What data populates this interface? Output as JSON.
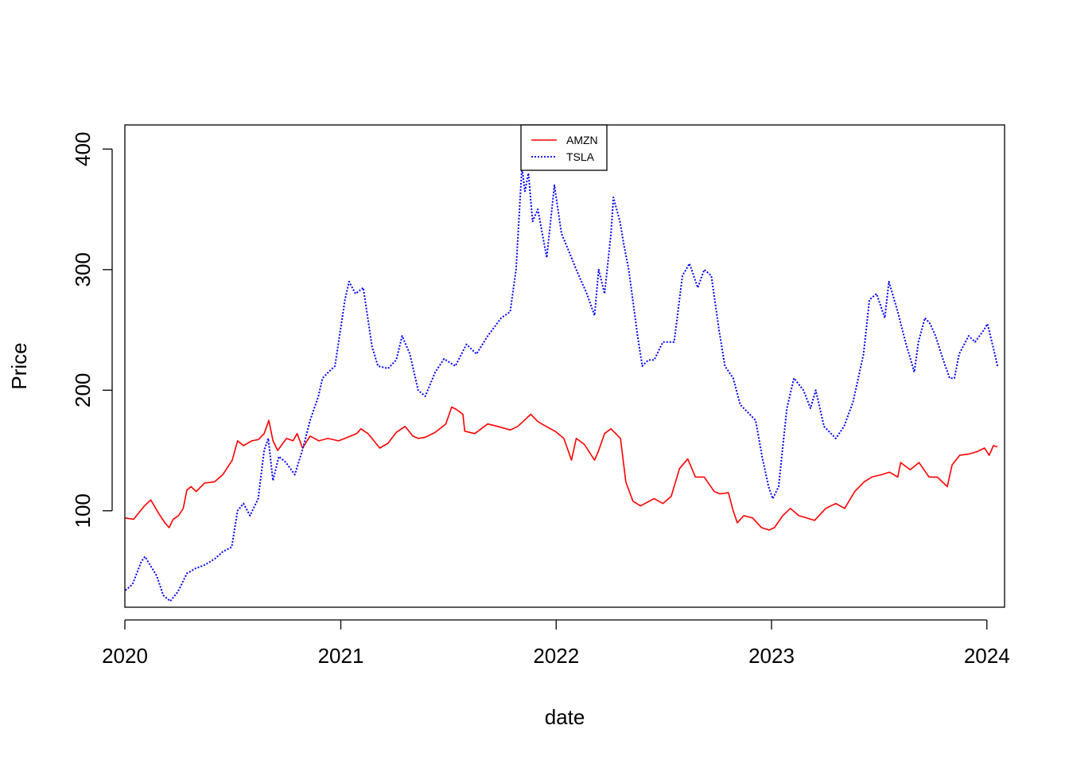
{
  "chart_data": {
    "type": "line",
    "title": "",
    "xlabel": "date",
    "ylabel": "Price",
    "xlim": [
      "2020-01-01",
      "2024-01-31"
    ],
    "ylim": [
      20,
      420
    ],
    "x_ticks": [
      "2020",
      "2021",
      "2022",
      "2023",
      "2024"
    ],
    "y_ticks": [
      100,
      200,
      300,
      400
    ],
    "grid": false,
    "legend": {
      "position": "top-center",
      "entries": [
        "AMZN",
        "TSLA"
      ]
    },
    "series": [
      {
        "name": "AMZN",
        "color": "#FF0000",
        "line_style": "solid",
        "x": [
          "2020-01-02",
          "2020-01-16",
          "2020-02-03",
          "2020-02-14",
          "2020-02-27",
          "2020-03-09",
          "2020-03-16",
          "2020-03-23",
          "2020-04-01",
          "2020-04-09",
          "2020-04-15",
          "2020-04-22",
          "2020-05-01",
          "2020-05-15",
          "2020-06-01",
          "2020-06-15",
          "2020-07-01",
          "2020-07-10",
          "2020-07-20",
          "2020-08-03",
          "2020-08-14",
          "2020-08-24",
          "2020-09-01",
          "2020-09-08",
          "2020-09-16",
          "2020-10-01",
          "2020-10-12",
          "2020-10-19",
          "2020-10-28",
          "2020-11-10",
          "2020-11-25",
          "2020-12-10",
          "2020-12-28",
          "2021-01-08",
          "2021-01-28",
          "2021-02-04",
          "2021-02-16",
          "2021-03-08",
          "2021-03-22",
          "2021-04-05",
          "2021-04-20",
          "2021-05-03",
          "2021-05-12",
          "2021-05-24",
          "2021-06-10",
          "2021-06-28",
          "2021-07-08",
          "2021-07-16",
          "2021-07-27",
          "2021-07-30",
          "2021-08-16",
          "2021-09-07",
          "2021-09-24",
          "2021-10-15",
          "2021-10-28",
          "2021-11-10",
          "2021-11-19",
          "2021-12-01",
          "2021-12-15",
          "2021-12-30",
          "2022-01-14",
          "2022-01-27",
          "2022-02-04",
          "2022-02-18",
          "2022-03-07",
          "2022-03-14",
          "2022-03-24",
          "2022-04-04",
          "2022-04-20",
          "2022-04-29",
          "2022-05-11",
          "2022-05-24",
          "2022-06-08",
          "2022-06-16",
          "2022-07-01",
          "2022-07-15",
          "2022-07-29",
          "2022-08-12",
          "2022-08-25",
          "2022-09-09",
          "2022-09-26",
          "2022-10-06",
          "2022-10-20",
          "2022-10-28",
          "2022-11-04",
          "2022-11-15",
          "2022-11-30",
          "2022-12-15",
          "2022-12-28",
          "2023-01-06",
          "2023-01-20",
          "2023-02-02",
          "2023-02-16",
          "2023-03-02",
          "2023-03-15",
          "2023-04-03",
          "2023-04-20",
          "2023-05-05",
          "2023-05-22",
          "2023-06-07",
          "2023-06-20",
          "2023-07-07",
          "2023-07-20",
          "2023-08-03",
          "2023-08-08",
          "2023-08-24",
          "2023-09-08",
          "2023-09-25",
          "2023-10-09",
          "2023-10-26",
          "2023-11-03",
          "2023-11-16",
          "2023-12-01",
          "2023-12-15",
          "2023-12-28",
          "2024-01-05",
          "2024-01-12",
          "2024-01-19"
        ],
        "values": [
          94,
          93,
          104,
          109,
          98,
          90,
          86,
          93,
          96,
          102,
          117,
          120,
          116,
          123,
          124,
          130,
          142,
          158,
          154,
          158,
          159,
          164,
          175,
          158,
          150,
          160,
          158,
          164,
          152,
          162,
          158,
          160,
          158,
          160,
          164,
          168,
          164,
          152,
          156,
          165,
          170,
          162,
          160,
          161,
          165,
          172,
          186,
          184,
          180,
          166,
          164,
          172,
          170,
          167,
          170,
          176,
          180,
          174,
          170,
          166,
          160,
          142,
          160,
          155,
          142,
          150,
          164,
          168,
          160,
          124,
          108,
          104,
          108,
          110,
          106,
          112,
          135,
          143,
          128,
          128,
          116,
          114,
          115,
          100,
          90,
          96,
          94,
          86,
          84,
          86,
          96,
          102,
          96,
          94,
          92,
          102,
          106,
          102,
          116,
          124,
          128,
          130,
          132,
          128,
          140,
          134,
          140,
          128,
          128,
          120,
          138,
          146,
          147,
          149,
          152,
          146,
          154,
          153
        ]
      },
      {
        "name": "TSLA",
        "color": "#0000FF",
        "line_style": "dotted",
        "x": [
          "2020-01-02",
          "2020-01-14",
          "2020-01-29",
          "2020-02-04",
          "2020-02-14",
          "2020-02-24",
          "2020-03-06",
          "2020-03-18",
          "2020-03-31",
          "2020-04-15",
          "2020-04-29",
          "2020-05-15",
          "2020-06-01",
          "2020-06-15",
          "2020-06-30",
          "2020-07-10",
          "2020-07-20",
          "2020-07-31",
          "2020-08-14",
          "2020-08-24",
          "2020-08-31",
          "2020-09-08",
          "2020-09-18",
          "2020-09-30",
          "2020-10-15",
          "2020-10-29",
          "2020-11-10",
          "2020-11-24",
          "2020-12-01",
          "2020-12-11",
          "2020-12-22",
          "2021-01-08",
          "2021-01-15",
          "2021-01-26",
          "2021-02-08",
          "2021-02-23",
          "2021-03-05",
          "2021-03-22",
          "2021-04-05",
          "2021-04-15",
          "2021-04-28",
          "2021-05-12",
          "2021-05-24",
          "2021-06-10",
          "2021-06-25",
          "2021-07-14",
          "2021-08-02",
          "2021-08-19",
          "2021-09-07",
          "2021-09-30",
          "2021-10-15",
          "2021-10-25",
          "2021-11-04",
          "2021-11-09",
          "2021-11-15",
          "2021-11-22",
          "2021-12-01",
          "2021-12-16",
          "2021-12-29",
          "2022-01-10",
          "2022-01-27",
          "2022-02-04",
          "2022-02-22",
          "2022-03-07",
          "2022-03-14",
          "2022-03-24",
          "2022-04-04",
          "2022-04-08",
          "2022-04-19",
          "2022-04-26",
          "2022-05-04",
          "2022-05-19",
          "2022-05-27",
          "2022-06-06",
          "2022-06-16",
          "2022-07-01",
          "2022-07-20",
          "2022-08-03",
          "2022-08-15",
          "2022-08-29",
          "2022-09-09",
          "2022-09-21",
          "2022-10-04",
          "2022-10-14",
          "2022-10-28",
          "2022-11-09",
          "2022-11-21",
          "2022-12-05",
          "2022-12-16",
          "2022-12-27",
          "2023-01-03",
          "2023-01-13",
          "2023-01-27",
          "2023-02-08",
          "2023-02-24",
          "2023-03-08",
          "2023-03-17",
          "2023-03-31",
          "2023-04-20",
          "2023-05-04",
          "2023-05-19",
          "2023-06-06",
          "2023-06-16",
          "2023-06-28",
          "2023-07-12",
          "2023-07-19",
          "2023-08-03",
          "2023-08-16",
          "2023-08-31",
          "2023-09-07",
          "2023-09-18",
          "2023-09-27",
          "2023-10-06",
          "2023-10-19",
          "2023-10-30",
          "2023-11-07",
          "2023-11-15",
          "2023-12-01",
          "2023-12-12",
          "2023-12-27",
          "2024-01-02",
          "2024-01-12",
          "2024-01-19"
        ],
        "values": [
          34,
          39,
          58,
          62,
          54,
          46,
          30,
          25,
          33,
          48,
          52,
          55,
          60,
          66,
          70,
          100,
          106,
          96,
          110,
          150,
          160,
          125,
          145,
          140,
          130,
          152,
          175,
          195,
          210,
          215,
          220,
          275,
          290,
          280,
          285,
          236,
          220,
          218,
          225,
          245,
          230,
          200,
          195,
          215,
          226,
          220,
          238,
          230,
          245,
          260,
          265,
          300,
          385,
          365,
          380,
          340,
          350,
          310,
          370,
          330,
          310,
          300,
          280,
          262,
          300,
          280,
          330,
          360,
          340,
          320,
          300,
          245,
          220,
          225,
          225,
          240,
          240,
          295,
          305,
          285,
          300,
          295,
          250,
          220,
          210,
          188,
          182,
          175,
          145,
          120,
          110,
          120,
          185,
          210,
          200,
          185,
          200,
          170,
          160,
          170,
          190,
          230,
          275,
          280,
          260,
          290,
          265,
          240,
          215,
          240,
          260,
          255,
          245,
          225,
          210,
          210,
          230,
          245,
          240,
          250,
          255,
          235,
          220
        ]
      }
    ]
  }
}
